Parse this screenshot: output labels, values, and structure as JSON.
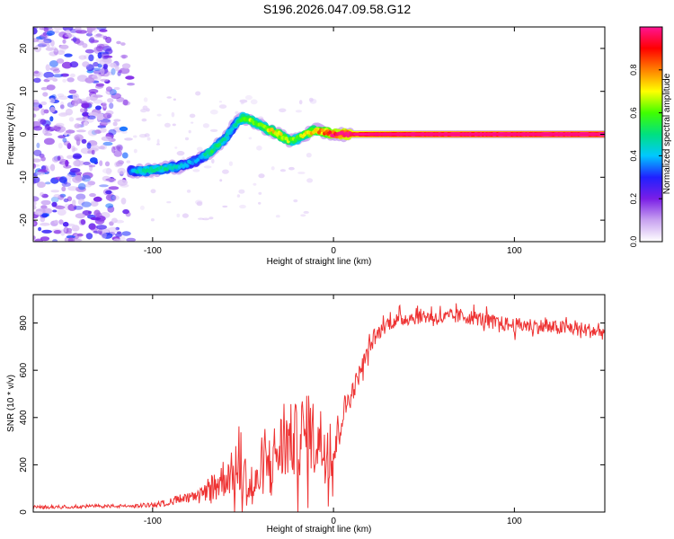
{
  "title": "S196.2026.047.09.58.G12",
  "chart_data": [
    {
      "type": "heatmap",
      "xlabel": "Height of straight line (km)",
      "ylabel": "Frequency (Hz)",
      "xlim": [
        -166,
        150
      ],
      "ylim": [
        -25,
        25
      ],
      "x_ticks": [
        -100,
        0,
        100
      ],
      "y_ticks": [
        -20,
        -10,
        0,
        10,
        20
      ],
      "grid": false,
      "colorbar": {
        "label": "Normalized spectral amplitude",
        "range": [
          0,
          1
        ],
        "ticks": [
          "0.0",
          "0.2",
          "0.4",
          "0.6",
          "0.8"
        ],
        "stops": [
          "#ffffff",
          "#c8a2f0",
          "#7a1ee6",
          "#2020ff",
          "#00c8ff",
          "#00e080",
          "#40ff00",
          "#ffff00",
          "#ff8000",
          "#ff0000",
          "#ff1493"
        ]
      },
      "ridge": {
        "description_x": [
          -112,
          -105,
          -95,
          -85,
          -75,
          -68,
          -60,
          -55,
          -50,
          -45,
          -40,
          -35,
          -30,
          -25,
          -20,
          -15,
          -10,
          -5,
          0,
          10,
          20,
          50,
          100,
          150
        ],
        "frequency_hz": [
          -8.5,
          -8.5,
          -8,
          -7.5,
          -6,
          -4,
          -1,
          2,
          4,
          3,
          2,
          1,
          0,
          -1.5,
          -1,
          0,
          1,
          0.5,
          0,
          0,
          0,
          0,
          0,
          0
        ],
        "amplitude": [
          0.25,
          0.35,
          0.35,
          0.3,
          0.25,
          0.4,
          0.35,
          0.3,
          0.45,
          0.5,
          0.45,
          0.55,
          0.6,
          0.5,
          0.45,
          0.55,
          0.6,
          0.7,
          0.8,
          0.85,
          0.9,
          0.95,
          0.98,
          1.0
        ]
      },
      "noise_region_x": [
        -166,
        -110
      ]
    },
    {
      "type": "line",
      "xlabel": "Height of straight line (km)",
      "ylabel": "SNR (10 * v/v)",
      "xlim": [
        -166,
        150
      ],
      "ylim": [
        0,
        920
      ],
      "x_ticks": [
        -100,
        0,
        100
      ],
      "y_ticks": [
        0,
        200,
        400,
        600,
        800
      ],
      "color": "#ee3333",
      "series": [
        {
          "name": "SNR",
          "x": [
            -166,
            -150,
            -130,
            -110,
            -95,
            -85,
            -75,
            -65,
            -58,
            -50,
            -45,
            -40,
            -35,
            -30,
            -25,
            -20,
            -15,
            -10,
            -5,
            0,
            5,
            10,
            15,
            20,
            25,
            30,
            40,
            50,
            60,
            70,
            80,
            90,
            100,
            110,
            120,
            130,
            140,
            150
          ],
          "y": [
            20,
            22,
            25,
            25,
            35,
            55,
            60,
            120,
            160,
            160,
            80,
            160,
            220,
            260,
            300,
            300,
            330,
            320,
            280,
            250,
            420,
            500,
            600,
            700,
            760,
            800,
            820,
            830,
            820,
            830,
            820,
            800,
            790,
            790,
            780,
            780,
            770,
            760
          ],
          "noise_amp": [
            15,
            15,
            15,
            15,
            25,
            40,
            60,
            100,
            110,
            150,
            100,
            120,
            150,
            200,
            200,
            200,
            210,
            200,
            200,
            150,
            80,
            60,
            50,
            40,
            40,
            40,
            40,
            40,
            40,
            40,
            40,
            40,
            40,
            40,
            40,
            40,
            40,
            40
          ]
        }
      ]
    }
  ]
}
